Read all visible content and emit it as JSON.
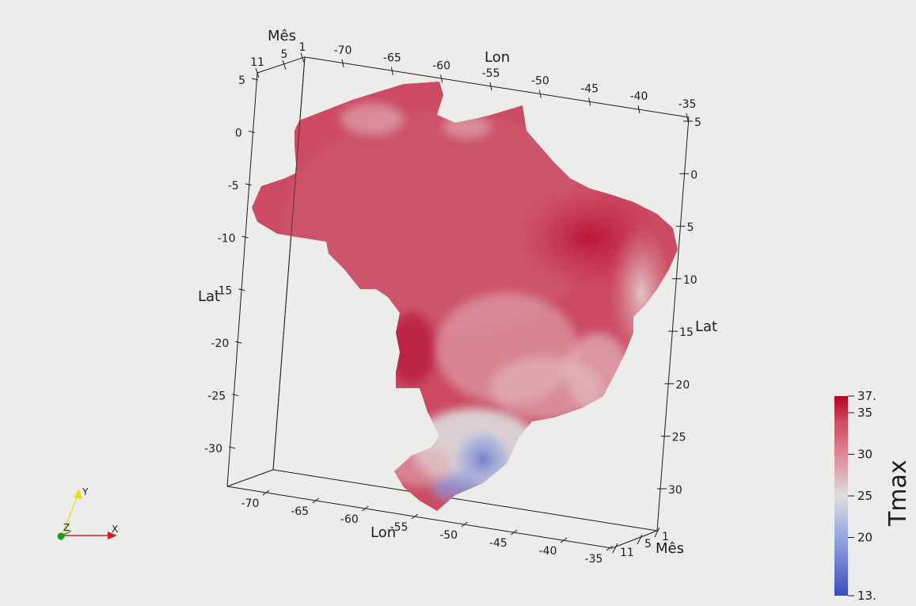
{
  "scene": {
    "axes": {
      "lon_title": "Lon",
      "lat_title": "Lat",
      "month_title": "Mês",
      "lon_ticks_top": [
        "-70",
        "-65",
        "-60",
        "-55",
        "-50",
        "-45",
        "-40",
        "-35"
      ],
      "lon_ticks_bottom": [
        "-70",
        "-65",
        "-60",
        "-55",
        "-50",
        "-45",
        "-40",
        "-35"
      ],
      "lat_ticks_left": [
        "5",
        "0",
        "-5",
        "-10",
        "-15",
        "-20",
        "-25",
        "-30"
      ],
      "lat_ticks_right": [
        "5",
        "0",
        "5",
        "10",
        "15",
        "20",
        "25",
        "30"
      ],
      "month_ticks_top": [
        "11",
        "5",
        "1"
      ],
      "month_ticks_bottom": [
        "1",
        "5",
        "11"
      ]
    },
    "legend": {
      "title": "Tmax",
      "min_label": "13.",
      "max_label": "37.",
      "ticks": [
        "35",
        "30",
        "25",
        "20"
      ],
      "tick_values": [
        35,
        30,
        25,
        20
      ],
      "range": [
        13,
        37
      ],
      "colors": {
        "low": "#3b4cc0",
        "mid": "#dddddd",
        "high": "#b40426"
      }
    },
    "orientation": {
      "x_label": "X",
      "y_label": "Y",
      "z_label": "Z",
      "colors": {
        "x": "#d62020",
        "y": "#e8e020",
        "z": "#20a020"
      }
    }
  }
}
